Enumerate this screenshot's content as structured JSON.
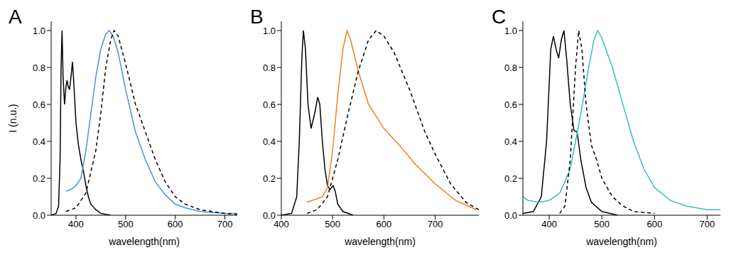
{
  "chart_data": [
    {
      "type": "line",
      "title": "A",
      "x_label": "wavelength(nm)",
      "y_label": "I (n.u.)",
      "grid": false,
      "xlim": [
        350,
        725
      ],
      "xticks": [
        400,
        500,
        600,
        700
      ],
      "ylim": [
        0,
        1.05
      ],
      "yticks": [
        {
          "value": 0,
          "label": "0.0"
        },
        0.2,
        0.4,
        0.6,
        0.8,
        {
          "value": 1,
          "label": "1.0"
        }
      ],
      "series": [
        {
          "color": "#000000",
          "line_style": "solid",
          "x": [
            350,
            360,
            365,
            368,
            370,
            372,
            374,
            377,
            380,
            382,
            384,
            387,
            390,
            393,
            396,
            400,
            405,
            410,
            415,
            420,
            425,
            430,
            440,
            450,
            470
          ],
          "values": [
            0.0,
            0.01,
            0.05,
            0.3,
            0.8,
            1.0,
            0.75,
            0.6,
            0.7,
            0.73,
            0.7,
            0.68,
            0.75,
            0.83,
            0.7,
            0.5,
            0.38,
            0.3,
            0.24,
            0.16,
            0.1,
            0.06,
            0.03,
            0.01,
            0.0
          ]
        },
        {
          "color": "#4a90d9",
          "line_style": "solid",
          "x": [
            380,
            390,
            400,
            410,
            420,
            430,
            440,
            450,
            460,
            467,
            475,
            485,
            500,
            520,
            540,
            560,
            580,
            600,
            620,
            650,
            700,
            725
          ],
          "values": [
            0.13,
            0.14,
            0.16,
            0.2,
            0.35,
            0.55,
            0.75,
            0.9,
            0.98,
            1.0,
            0.97,
            0.88,
            0.68,
            0.45,
            0.3,
            0.18,
            0.11,
            0.06,
            0.04,
            0.02,
            0.01,
            0.01
          ]
        },
        {
          "color": "#000000",
          "line_style": "dashed",
          "x": [
            380,
            400,
            420,
            440,
            450,
            460,
            470,
            477,
            485,
            500,
            520,
            540,
            560,
            580,
            600,
            620,
            650,
            700,
            725
          ],
          "values": [
            0.02,
            0.04,
            0.12,
            0.35,
            0.55,
            0.8,
            0.95,
            1.0,
            0.97,
            0.82,
            0.6,
            0.45,
            0.3,
            0.18,
            0.1,
            0.06,
            0.03,
            0.01,
            0.005
          ]
        }
      ]
    },
    {
      "type": "line",
      "title": "B",
      "x_label": "wavelength(nm)",
      "grid": false,
      "xlim": [
        400,
        785
      ],
      "xticks": [
        400,
        500,
        600,
        700
      ],
      "ylim": [
        0,
        1.05
      ],
      "yticks": [
        {
          "value": 0,
          "label": "0.0"
        },
        0.2,
        0.4,
        0.6,
        0.8,
        {
          "value": 1,
          "label": "1.0"
        }
      ],
      "series": [
        {
          "color": "#000000",
          "line_style": "solid",
          "x": [
            400,
            420,
            430,
            435,
            440,
            443,
            447,
            452,
            458,
            465,
            471,
            475,
            480,
            485,
            490,
            495,
            501,
            505,
            510,
            520,
            540
          ],
          "values": [
            0.0,
            0.01,
            0.1,
            0.4,
            0.85,
            1.0,
            0.9,
            0.6,
            0.47,
            0.55,
            0.64,
            0.6,
            0.4,
            0.25,
            0.16,
            0.14,
            0.16,
            0.13,
            0.06,
            0.02,
            0.0
          ]
        },
        {
          "color": "#f07f1a",
          "line_style": "solid",
          "x": [
            450,
            460,
            480,
            490,
            500,
            510,
            520,
            528,
            535,
            550,
            570,
            600,
            630,
            660,
            700,
            740,
            780
          ],
          "values": [
            0.07,
            0.08,
            0.1,
            0.15,
            0.35,
            0.65,
            0.9,
            1.0,
            0.95,
            0.78,
            0.6,
            0.47,
            0.38,
            0.28,
            0.17,
            0.08,
            0.03
          ]
        },
        {
          "color": "#000000",
          "line_style": "dashed",
          "x": [
            450,
            470,
            490,
            510,
            530,
            550,
            570,
            585,
            600,
            620,
            650,
            680,
            700,
            730,
            760,
            785
          ],
          "values": [
            0.01,
            0.03,
            0.1,
            0.3,
            0.55,
            0.78,
            0.95,
            1.0,
            0.97,
            0.88,
            0.68,
            0.45,
            0.33,
            0.17,
            0.07,
            0.03
          ]
        }
      ]
    },
    {
      "type": "line",
      "title": "C",
      "x_label": "wavelength(nm)",
      "grid": false,
      "xlim": [
        350,
        725
      ],
      "xticks": [
        400,
        500,
        600,
        700
      ],
      "ylim": [
        0,
        1.05
      ],
      "yticks": [
        {
          "value": 0,
          "label": "0.0"
        },
        0.2,
        0.4,
        0.6,
        0.8,
        {
          "value": 1,
          "label": "1.0"
        }
      ],
      "series": [
        {
          "color": "#000000",
          "line_style": "solid",
          "x": [
            350,
            370,
            385,
            395,
            403,
            408,
            413,
            418,
            423,
            428,
            433,
            440,
            447,
            453,
            460,
            470,
            480,
            500,
            530
          ],
          "values": [
            0.01,
            0.02,
            0.1,
            0.4,
            0.9,
            0.97,
            0.9,
            0.85,
            0.95,
            1.0,
            0.85,
            0.6,
            0.46,
            0.45,
            0.3,
            0.15,
            0.07,
            0.02,
            0.0
          ]
        },
        {
          "color": "#3bbfbf",
          "line_style": "solid",
          "x": [
            350,
            360,
            380,
            400,
            420,
            440,
            460,
            475,
            485,
            492,
            500,
            520,
            540,
            560,
            580,
            600,
            630,
            660,
            700,
            725
          ],
          "values": [
            0.1,
            0.08,
            0.07,
            0.08,
            0.12,
            0.25,
            0.55,
            0.8,
            0.95,
            1.0,
            0.96,
            0.8,
            0.6,
            0.4,
            0.25,
            0.15,
            0.08,
            0.05,
            0.03,
            0.03
          ]
        },
        {
          "color": "#000000",
          "line_style": "dashed",
          "x": [
            420,
            430,
            440,
            450,
            456,
            462,
            470,
            480,
            490,
            500,
            520,
            540,
            560,
            600
          ],
          "values": [
            0.01,
            0.05,
            0.3,
            0.8,
            1.0,
            0.9,
            0.6,
            0.38,
            0.3,
            0.2,
            0.1,
            0.05,
            0.02,
            0.01
          ]
        }
      ]
    }
  ]
}
